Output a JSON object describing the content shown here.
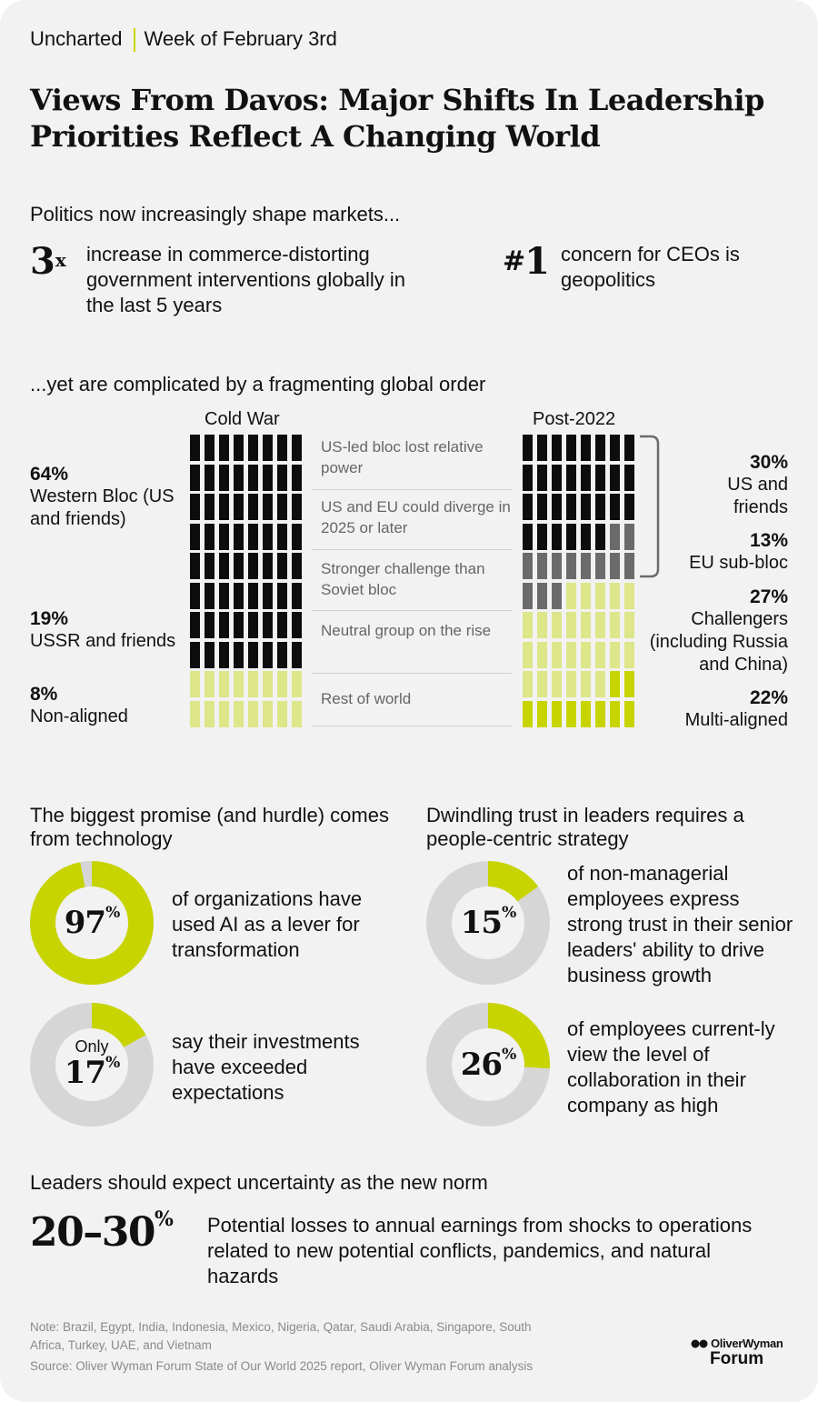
{
  "header": {
    "brand": "Uncharted",
    "week": "Week of February 3rd"
  },
  "title": "Views From Davos: Major Shifts In Leadership Priorities Reflect A Changing World",
  "politics": {
    "heading": "Politics now increasingly shape markets...",
    "stat1": {
      "value": "3",
      "suffix": "x",
      "text": "increase in commerce-distorting government interventions globally in the last 5 years"
    },
    "stat2": {
      "value": "1",
      "prefix": "#",
      "text": "concern for CEOs is geopolitics"
    }
  },
  "fragment": {
    "heading": "...yet are complicated by a fragmenting global order",
    "left_title": "Cold War",
    "right_title": "Post-2022",
    "left_labels": [
      {
        "pct": "64%",
        "text": "Western Bloc (US and friends)"
      },
      {
        "pct": "19%",
        "text": "USSR and friends"
      },
      {
        "pct": "8%",
        "text": "Non-aligned"
      }
    ],
    "right_labels": [
      {
        "pct": "30%",
        "text": "US and friends"
      },
      {
        "pct": "13%",
        "text": "EU sub-bloc"
      },
      {
        "pct": "27%",
        "text": "Challengers (including Russia and China)"
      },
      {
        "pct": "22%",
        "text": "Multi-aligned"
      }
    ],
    "middle_notes": [
      "US-led bloc lost relative power",
      "US and EU could diverge in 2025 or later",
      "Stronger challenge than Soviet bloc",
      "Neutral group on the rise",
      "Rest of world"
    ]
  },
  "tech": {
    "heading": "The biggest promise (and hurdle) comes from technology",
    "items": [
      {
        "value": "97",
        "prefix": "",
        "text": "of organizations have used AI as a lever for transformation"
      },
      {
        "value": "17",
        "prefix": "Only",
        "text": "say their investments have exceeded expectations"
      }
    ]
  },
  "trust": {
    "heading": "Dwindling trust in leaders requires a people-centric strategy",
    "items": [
      {
        "value": "15",
        "text": "of non-managerial employees express strong trust in their senior leaders' ability to drive business growth"
      },
      {
        "value": "26",
        "text": "of employees current-ly view the level of collaboration in their company as high"
      }
    ]
  },
  "uncertainty": {
    "heading": "Leaders should expect uncertainty as the new norm",
    "value": "20–30",
    "text": "Potential losses to annual earnings from shocks to operations related to new potential conflicts, pandemics, and natural hazards"
  },
  "footer": {
    "note": "Note: Brazil, Egypt, India, Indonesia, Mexico, Nigeria, Qatar, Saudi Arabia, Singapore, South Africa, Turkey, UAE, and Vietnam",
    "source": "Source: Oliver Wyman Forum State of Our World 2025 report, Oliver Wyman Forum analysis",
    "logo_top": "OliverWyman",
    "logo_bottom": "Forum"
  },
  "colors": {
    "black": "#0d0d0d",
    "lime": "#c8d400",
    "light_lime": "#dde689",
    "grey": "#d6d6d6",
    "dark_grey": "#6b6b6b",
    "card": "#f2f2f2"
  },
  "chart_data": [
    {
      "type": "waffle",
      "title": "Cold War",
      "grid": "8 x 10",
      "series": [
        {
          "name": "Western Bloc (US and friends)",
          "value": 64,
          "color": "#0d0d0d"
        },
        {
          "name": "USSR and friends",
          "value": 19,
          "color": "#dde689"
        },
        {
          "name": "Non-aligned",
          "value": 8,
          "color": "#c8d400"
        },
        {
          "name": "Rest of world",
          "value": 9,
          "color": "#d6d6d6"
        }
      ]
    },
    {
      "type": "waffle",
      "title": "Post-2022",
      "grid": "8 x 10",
      "series": [
        {
          "name": "US and friends",
          "value": 30,
          "color": "#0d0d0d"
        },
        {
          "name": "EU sub-bloc",
          "value": 13,
          "color": "#6b6b6b"
        },
        {
          "name": "Challengers (including Russia and China)",
          "value": 27,
          "color": "#dde689"
        },
        {
          "name": "Multi-aligned",
          "value": 22,
          "color": "#c8d400"
        },
        {
          "name": "Rest of world",
          "value": 8,
          "color": "#d6d6d6"
        }
      ]
    },
    {
      "type": "pie",
      "title": "",
      "values": [
        97,
        3
      ]
    },
    {
      "type": "pie",
      "title": "",
      "values": [
        17,
        83
      ]
    },
    {
      "type": "pie",
      "title": "",
      "values": [
        15,
        85
      ]
    },
    {
      "type": "pie",
      "title": "",
      "values": [
        26,
        74
      ]
    }
  ]
}
